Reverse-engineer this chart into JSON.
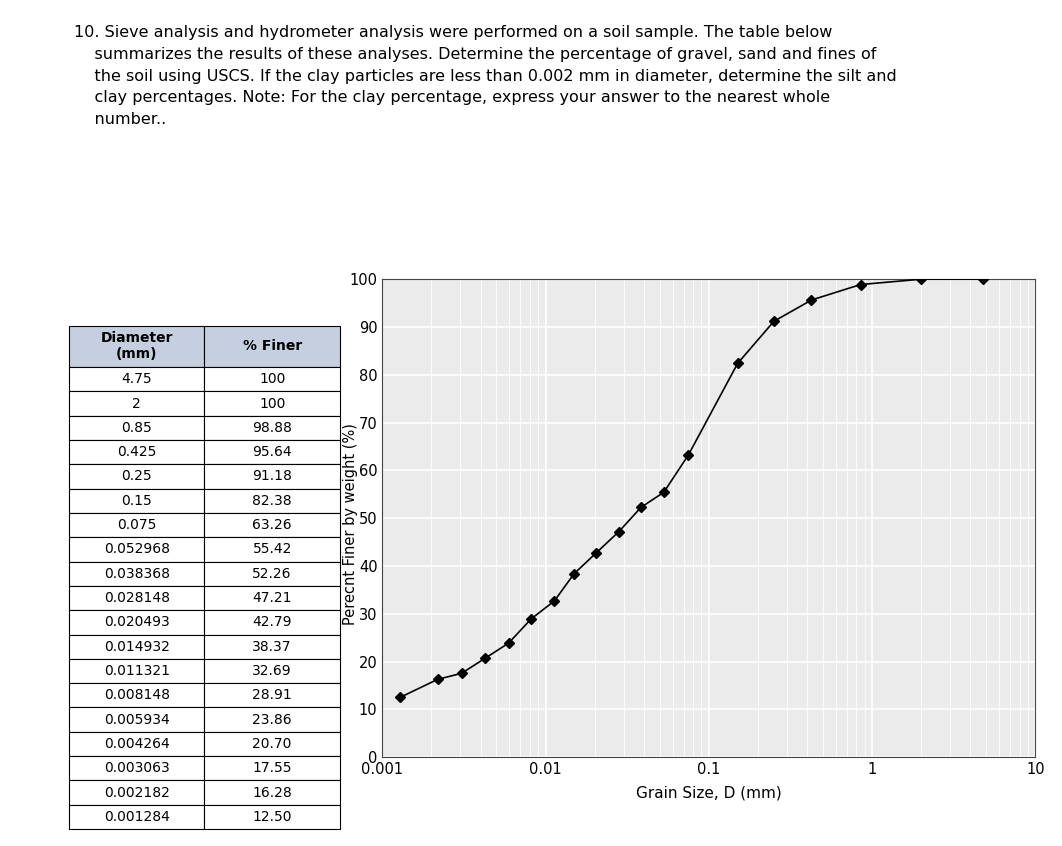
{
  "title_lines": [
    "10. Sieve analysis and hydrometer analysis were performed on a soil sample. The table below",
    "    summarizes the results of these analyses. Determine the percentage of gravel, sand and fines of",
    "    the soil using USCS. If the clay particles are less than 0.002 mm in diameter, determine the silt and",
    "    clay percentages. Note: For the clay percentage, express your answer to the nearest whole",
    "    number.."
  ],
  "table_headers": [
    "Diameter\n(mm)",
    "% Finer"
  ],
  "table_data": [
    [
      "4.75",
      "100"
    ],
    [
      "2",
      "100"
    ],
    [
      "0.85",
      "98.88"
    ],
    [
      "0.425",
      "95.64"
    ],
    [
      "0.25",
      "91.18"
    ],
    [
      "0.15",
      "82.38"
    ],
    [
      "0.075",
      "63.26"
    ],
    [
      "0.052968",
      "55.42"
    ],
    [
      "0.038368",
      "52.26"
    ],
    [
      "0.028148",
      "47.21"
    ],
    [
      "0.020493",
      "42.79"
    ],
    [
      "0.014932",
      "38.37"
    ],
    [
      "0.011321",
      "32.69"
    ],
    [
      "0.008148",
      "28.91"
    ],
    [
      "0.005934",
      "23.86"
    ],
    [
      "0.004264",
      "20.70"
    ],
    [
      "0.003063",
      "17.55"
    ],
    [
      "0.002182",
      "16.28"
    ],
    [
      "0.001284",
      "12.50"
    ]
  ],
  "diameters": [
    4.75,
    2,
    0.85,
    0.425,
    0.25,
    0.15,
    0.075,
    0.052968,
    0.038368,
    0.028148,
    0.020493,
    0.014932,
    0.011321,
    0.008148,
    0.005934,
    0.004264,
    0.003063,
    0.002182,
    0.001284
  ],
  "percent_finer": [
    100,
    100,
    98.88,
    95.64,
    91.18,
    82.38,
    63.26,
    55.42,
    52.26,
    47.21,
    42.79,
    38.37,
    32.69,
    28.91,
    23.86,
    20.7,
    17.55,
    16.28,
    12.5
  ],
  "xlabel": "Grain Size, D (mm)",
  "ylabel": "Perecnt Finer by weight (%)",
  "xlim_log": [
    0.001,
    10
  ],
  "ylim": [
    0,
    100
  ],
  "yticks": [
    0,
    10,
    20,
    30,
    40,
    50,
    60,
    70,
    80,
    90,
    100
  ],
  "line_color": "#000000",
  "marker": "D",
  "marker_size": 5,
  "grid_color": "#d8d8d8",
  "plot_bg_color": "#ebebeb",
  "table_header_bg": "#c5cfe0",
  "table_bg": "#ffffff",
  "table_border": "#000000",
  "title_fontsize": 11.5,
  "axis_label_fontsize": 11,
  "tick_fontsize": 10.5,
  "table_fontsize": 10
}
